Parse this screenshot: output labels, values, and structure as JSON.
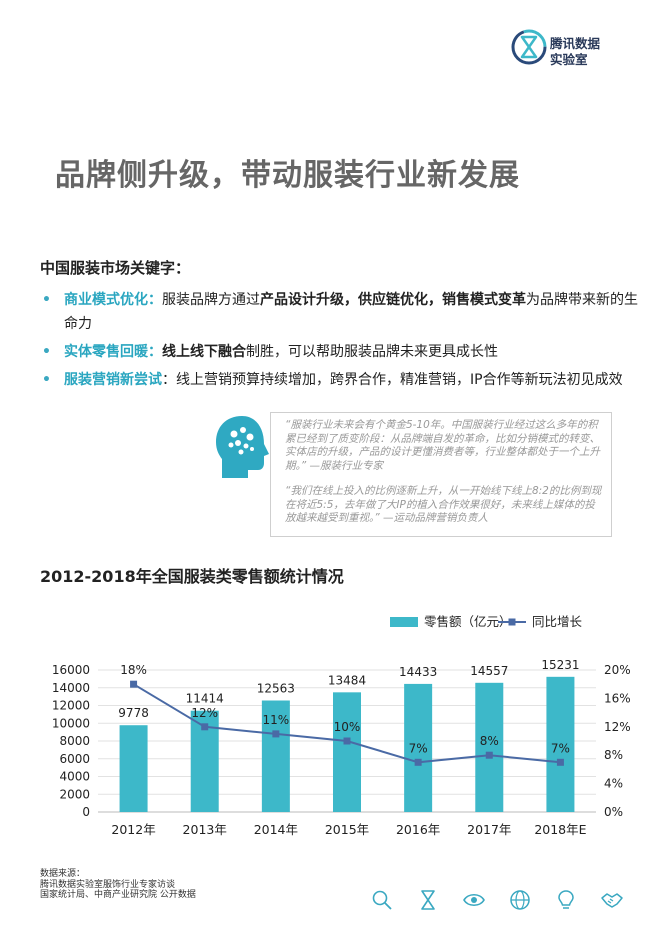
{
  "brand": {
    "line1": "腾讯数据",
    "line2": "实验室"
  },
  "page_title": "品牌侧升级，带动服装行业新发展",
  "keywords_title": "中国服装市场关键字：",
  "bullets": [
    {
      "head": "商业模式优化：",
      "p1": "服装品牌方通过",
      "b1": "产品设计升级",
      "p2": "，",
      "b2": "供应链优化",
      "p3": "，",
      "b3": "销售模式变革",
      "p4": "为品牌带来新的生命力"
    },
    {
      "head": "实体零售回暖：",
      "b1": "线上线下融合",
      "p1": "制胜，可以帮助服装品牌未来更具成长性"
    },
    {
      "head": "服装营销新尝试",
      "p1": "：线上营销预算持续增加，跨界合作，精准营销，IP合作等新玩法初见成效"
    }
  ],
  "quotes": [
    "“服装行业未来会有个黄金5-10年。中国服装行业经过这么多年的积累已经到了质变阶段：从品牌端自发的革命，比如分销模式的转变、实体店的升级，产品的设计更懂消费者等，行业整体都处于一个上升期。” —服装行业专家",
    "“我们在线上投入的比例逐新上升，从一开始线下线上8:2的比例到现在将近5:5，去年做了大IP的植入合作效果很好，未来线上媒体的投放越来越受到重视。” —运动品牌营销负责人"
  ],
  "chart_title": "2012-2018年全国服装类零售额统计情况",
  "chart_data": {
    "type": "bar",
    "categories": [
      "2012年",
      "2013年",
      "2014年",
      "2015年",
      "2016年",
      "2017年",
      "2018年E"
    ],
    "series": [
      {
        "name": "零售额（亿元）",
        "type": "bar",
        "axis": "left",
        "values": [
          9778,
          11414,
          12563,
          13484,
          14433,
          14557,
          15231
        ],
        "color": "#3db8c9"
      },
      {
        "name": "同比增长",
        "type": "line",
        "axis": "right",
        "values": [
          18,
          12,
          11,
          10,
          7,
          8,
          7
        ],
        "labels": [
          "18%",
          "12%",
          "11%",
          "10%",
          "7%",
          "8%",
          "7%"
        ],
        "color": "#4a6aa5"
      }
    ],
    "y_left": {
      "min": 0,
      "max": 16000,
      "ticks": [
        "0",
        "2000",
        "4000",
        "6000",
        "8000",
        "10000",
        "12000",
        "14000",
        "16000"
      ]
    },
    "y_right": {
      "min": 0,
      "max": 20,
      "ticks": [
        "0%",
        "4%",
        "8%",
        "12%",
        "16%",
        "20%"
      ]
    },
    "grid": true,
    "legend": "top-right"
  },
  "source": {
    "label": "数据来源：",
    "lines": [
      "腾讯数据实验室服饰行业专家访谈",
      "国家统计局、中商产业研究院 公开数据"
    ]
  },
  "footer_icons": [
    "search-icon",
    "hourglass-icon",
    "eye-icon",
    "globe-icon",
    "lightbulb-icon",
    "handshake-icon"
  ]
}
